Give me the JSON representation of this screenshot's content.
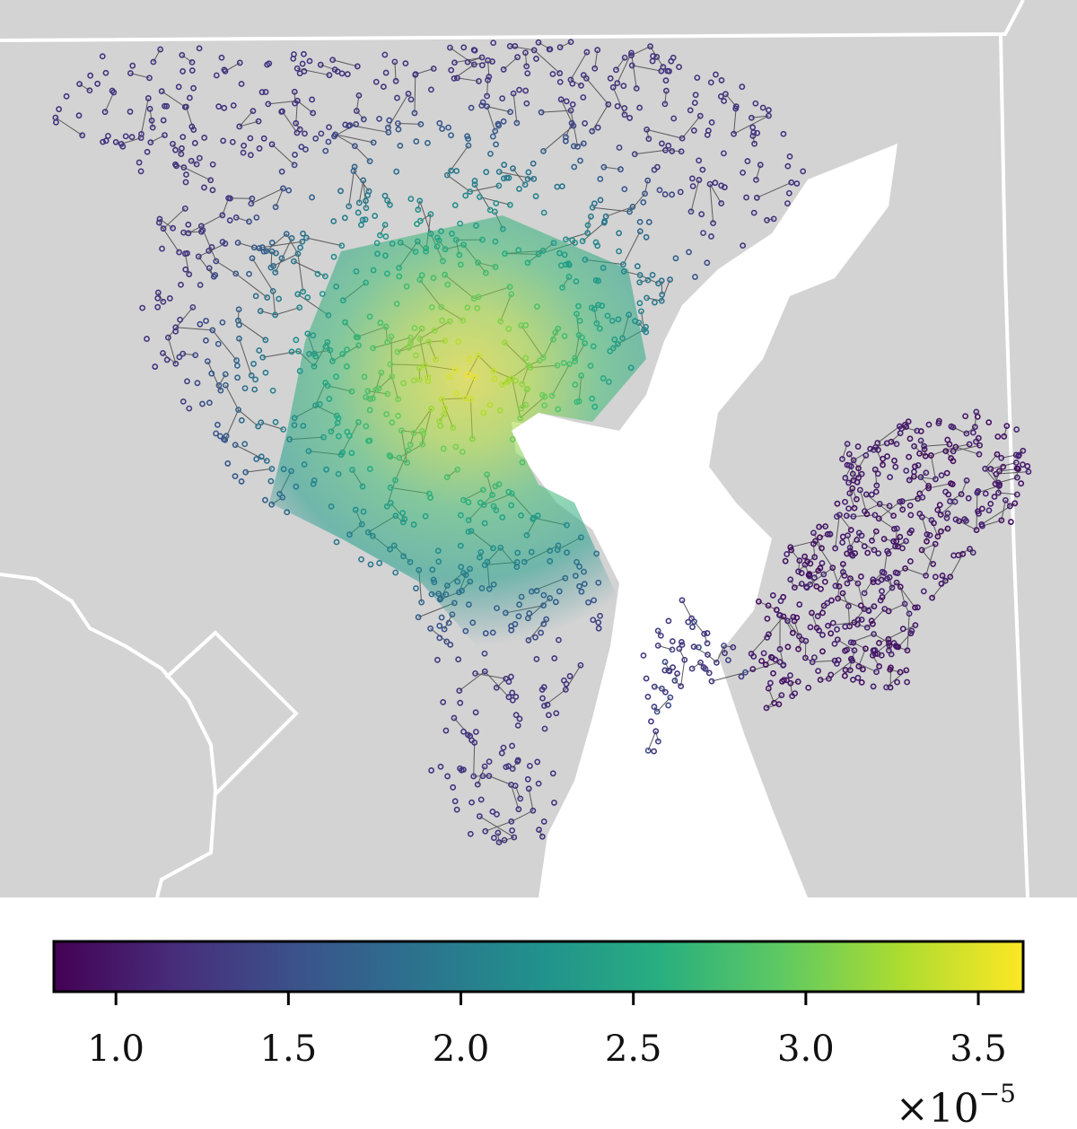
{
  "chart_data": {
    "type": "map",
    "title": "",
    "colormap": "viridis",
    "colors": {
      "land": "#d3d3d3",
      "water": "#ffffff",
      "boundary": "#ffffff",
      "road_edges": "#5a5a5a"
    },
    "colorbar": {
      "orientation": "horizontal",
      "placement": "bottom",
      "range": [
        0.82,
        3.63
      ],
      "ticks": [
        1.0,
        1.5,
        2.0,
        2.5,
        3.0,
        3.5
      ],
      "tick_labels": [
        "1.0",
        "1.5",
        "2.0",
        "2.5",
        "3.0",
        "3.5"
      ],
      "scale_prefix": "×10",
      "scale_exponent": "−5"
    },
    "value_pattern": {
      "peak_value": 3.6,
      "peak_region": "central (west shore of bay)",
      "northern_region_value": 1.5,
      "southern_peninsula_value": 1.3,
      "eastern_shore_value": 0.9
    }
  }
}
